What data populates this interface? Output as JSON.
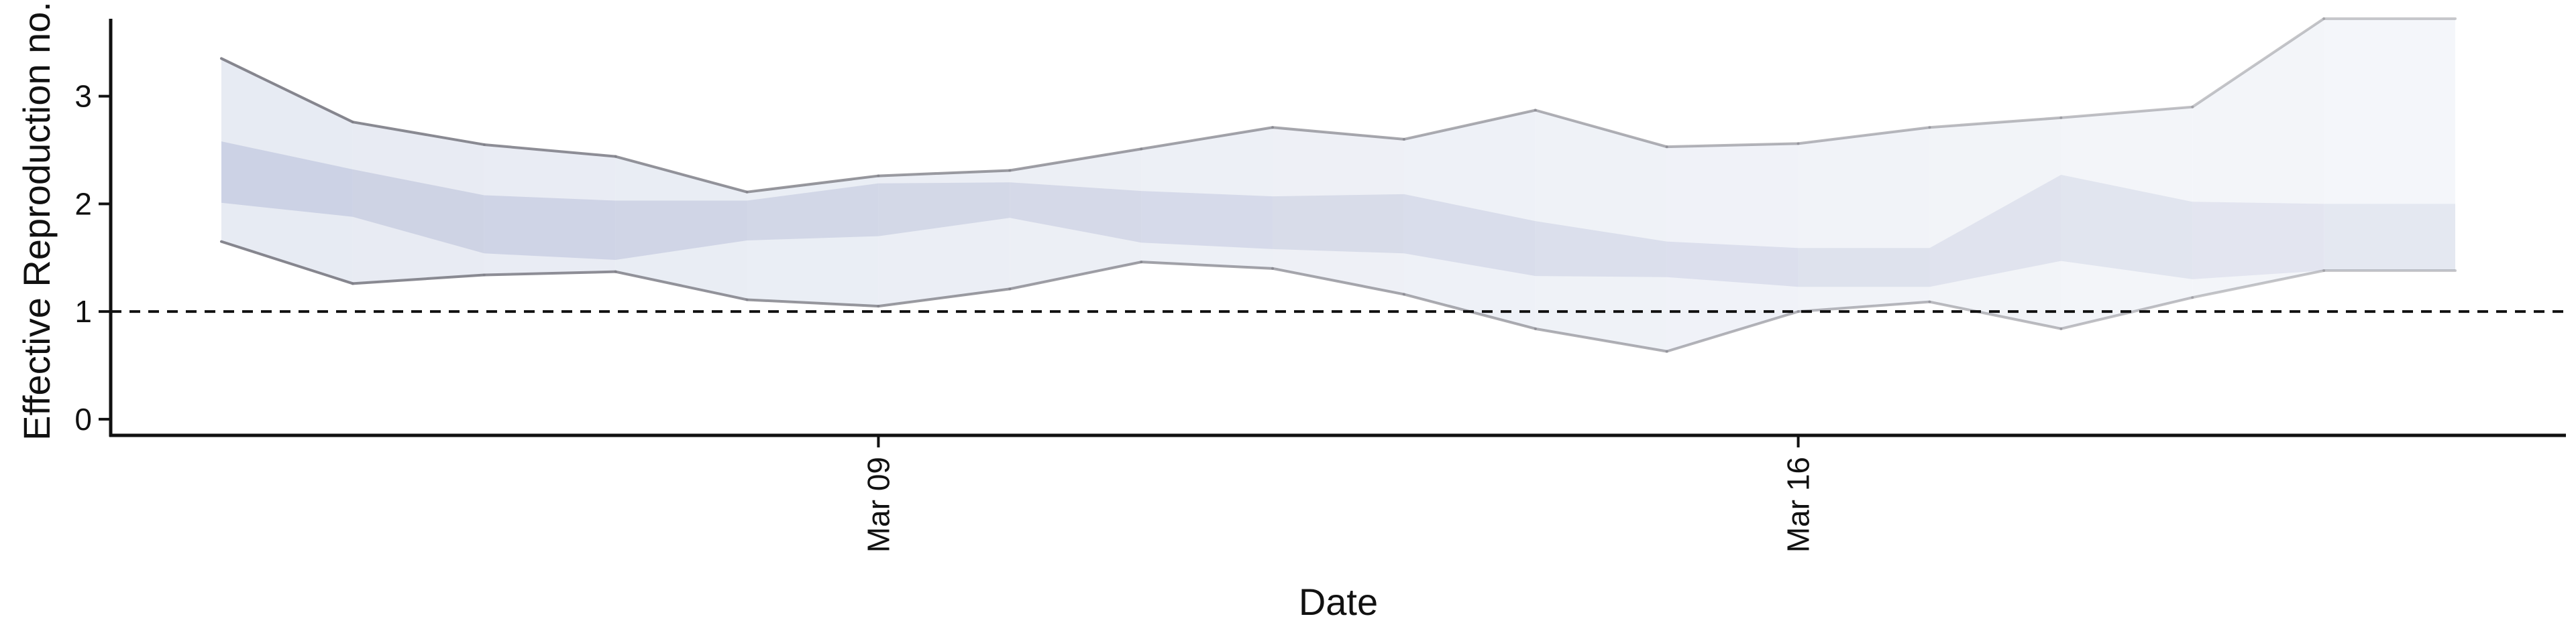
{
  "chart_data": {
    "type": "area",
    "title": "",
    "xlabel": "Date",
    "ylabel": "Effective Reproduction no.",
    "x": [
      "Mar 04",
      "Mar 05",
      "Mar 06",
      "Mar 07",
      "Mar 08",
      "Mar 09",
      "Mar 10",
      "Mar 11",
      "Mar 12",
      "Mar 13",
      "Mar 14",
      "Mar 15",
      "Mar 16",
      "Mar 17",
      "Mar 18",
      "Mar 19",
      "Mar 20",
      "Mar 21"
    ],
    "x_ticks": [
      {
        "date": "Mar 09",
        "label": "Mar 09"
      },
      {
        "date": "Mar 16",
        "label": "Mar 16"
      }
    ],
    "y_ticks": [
      0,
      1,
      2,
      3
    ],
    "ylim": [
      -0.15,
      3.8
    ],
    "xlim": [
      "Mar 03",
      "Mar 21"
    ],
    "reference_line": {
      "y": 1,
      "style": "dashed"
    },
    "grid": false,
    "series": [
      {
        "band": "90%",
        "lower": [
          1.65,
          1.26,
          1.34,
          1.37,
          1.11,
          1.05,
          1.21,
          1.46,
          1.4,
          1.16,
          0.84,
          0.63,
          1.0,
          1.09,
          0.84,
          1.13,
          1.38,
          1.38
        ],
        "upper": [
          3.35,
          2.76,
          2.55,
          2.44,
          2.11,
          2.26,
          2.31,
          2.51,
          2.71,
          2.6,
          2.87,
          2.53,
          2.56,
          2.71,
          2.8,
          2.9,
          3.72,
          3.72
        ]
      },
      {
        "band": "50%",
        "lower": [
          2.01,
          1.88,
          1.54,
          1.48,
          1.66,
          1.7,
          1.87,
          1.64,
          1.58,
          1.54,
          1.33,
          1.32,
          1.23,
          1.23,
          1.47,
          1.3,
          1.38,
          1.38
        ],
        "upper": [
          2.58,
          2.32,
          2.08,
          2.03,
          2.03,
          2.19,
          2.2,
          2.12,
          2.07,
          2.09,
          1.84,
          1.65,
          1.59,
          1.59,
          2.27,
          2.02,
          2.0,
          2.0
        ]
      }
    ],
    "colors": {
      "outer_band": "#dfe4ef",
      "inner_band": "#b7bdd8",
      "outer_line": "#808088",
      "reference_line": "#111111",
      "axis": "#111111"
    }
  }
}
